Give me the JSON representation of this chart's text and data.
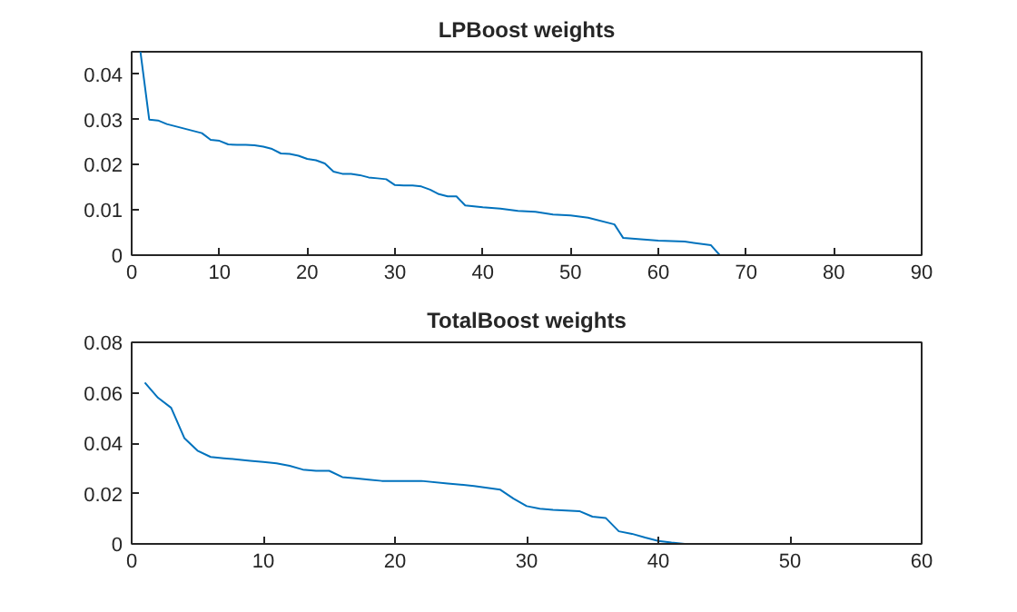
{
  "chart_data": [
    {
      "type": "line",
      "title": "LPBoost weights",
      "xlim": [
        0,
        90
      ],
      "xticks": [
        0,
        10,
        20,
        30,
        40,
        50,
        60,
        70,
        80,
        90
      ],
      "ylim": [
        0,
        0.045
      ],
      "yticks": [
        0,
        0.01,
        0.02,
        0.03,
        0.04
      ],
      "grid": false,
      "series": [
        {
          "color": "#0072bd",
          "x": [
            1,
            2,
            3,
            4,
            5,
            6,
            7,
            8,
            9,
            10,
            11,
            12,
            13,
            14,
            15,
            16,
            17,
            18,
            19,
            20,
            21,
            22,
            23,
            24,
            25,
            26,
            27,
            28,
            29,
            30,
            31,
            32,
            33,
            34,
            35,
            36,
            37,
            38,
            39,
            40,
            42,
            44,
            46,
            47,
            48,
            50,
            52,
            55,
            56,
            60,
            63,
            66,
            67,
            82
          ],
          "values": [
            0.045,
            0.03,
            0.0298,
            0.029,
            0.0285,
            0.028,
            0.0275,
            0.027,
            0.0255,
            0.0253,
            0.0245,
            0.0244,
            0.0244,
            0.0243,
            0.024,
            0.0235,
            0.0225,
            0.0224,
            0.022,
            0.0213,
            0.021,
            0.0203,
            0.0185,
            0.018,
            0.018,
            0.0177,
            0.0172,
            0.017,
            0.0168,
            0.0155,
            0.0154,
            0.0154,
            0.0152,
            0.0145,
            0.0135,
            0.013,
            0.013,
            0.011,
            0.0108,
            0.0106,
            0.0103,
            0.0098,
            0.0096,
            0.0093,
            0.009,
            0.0088,
            0.0083,
            0.0068,
            0.0038,
            0.0032,
            0.003,
            0.0022,
            0,
            0
          ]
        }
      ]
    },
    {
      "type": "line",
      "title": "TotalBoost weights",
      "xlim": [
        0,
        60
      ],
      "xticks": [
        0,
        10,
        20,
        30,
        40,
        50,
        60
      ],
      "ylim": [
        0,
        0.08
      ],
      "yticks": [
        0,
        0.02,
        0.04,
        0.06,
        0.08
      ],
      "grid": false,
      "series": [
        {
          "color": "#0072bd",
          "x": [
            1,
            2,
            3,
            4,
            5,
            6,
            7,
            8,
            9,
            10,
            11,
            12,
            13,
            14,
            15,
            16,
            17,
            18,
            19,
            20,
            22,
            24,
            26,
            28,
            29,
            30,
            31,
            32,
            33,
            34,
            35,
            36,
            37,
            38,
            39,
            40,
            41,
            42,
            52
          ],
          "values": [
            0.064,
            0.058,
            0.054,
            0.042,
            0.037,
            0.0345,
            0.034,
            0.0335,
            0.033,
            0.0325,
            0.032,
            0.031,
            0.0295,
            0.029,
            0.029,
            0.0265,
            0.026,
            0.0255,
            0.025,
            0.025,
            0.025,
            0.024,
            0.023,
            0.0215,
            0.018,
            0.015,
            0.014,
            0.0135,
            0.0132,
            0.013,
            0.0108,
            0.0103,
            0.005,
            0.004,
            0.0025,
            0.0012,
            0.0005,
            0,
            0
          ]
        }
      ]
    }
  ]
}
